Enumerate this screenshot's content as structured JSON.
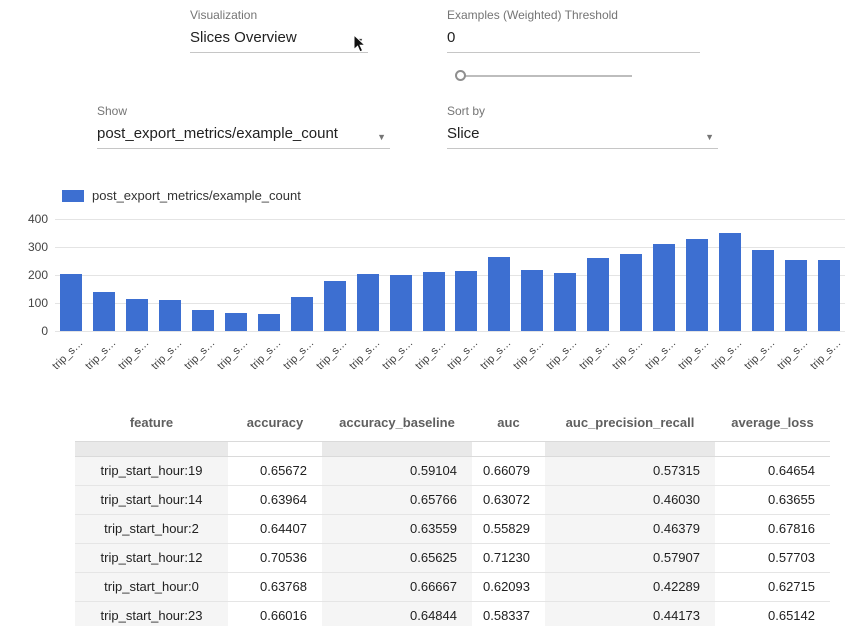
{
  "controls": {
    "visualization": {
      "label": "Visualization",
      "value": "Slices Overview"
    },
    "threshold": {
      "label": "Examples (Weighted) Threshold",
      "value": "0"
    },
    "show": {
      "label": "Show",
      "value": "post_export_metrics/example_count"
    },
    "sort_by": {
      "label": "Sort by",
      "value": "Slice"
    }
  },
  "chart_data": {
    "type": "bar",
    "legend": "post_export_metrics/example_count",
    "bar_color": "#3d6fd1",
    "ylim": [
      0,
      400
    ],
    "y_ticks": [
      0,
      100,
      200,
      300,
      400
    ],
    "x_tick_label": "trip_s…",
    "values": [
      205,
      140,
      113,
      110,
      75,
      65,
      62,
      120,
      178,
      205,
      200,
      210,
      213,
      265,
      218,
      208,
      260,
      275,
      310,
      330,
      350,
      290,
      253,
      255
    ]
  },
  "table": {
    "columns": [
      "feature",
      "accuracy",
      "accuracy_baseline",
      "auc",
      "auc_precision_recall",
      "average_loss"
    ],
    "rows": [
      [
        "trip_start_hour:19",
        "0.65672",
        "0.59104",
        "0.66079",
        "0.57315",
        "0.64654"
      ],
      [
        "trip_start_hour:14",
        "0.63964",
        "0.65766",
        "0.63072",
        "0.46030",
        "0.63655"
      ],
      [
        "trip_start_hour:2",
        "0.64407",
        "0.63559",
        "0.55829",
        "0.46379",
        "0.67816"
      ],
      [
        "trip_start_hour:12",
        "0.70536",
        "0.65625",
        "0.71230",
        "0.57907",
        "0.57703"
      ],
      [
        "trip_start_hour:0",
        "0.63768",
        "0.66667",
        "0.62093",
        "0.42289",
        "0.62715"
      ],
      [
        "trip_start_hour:23",
        "0.66016",
        "0.64844",
        "0.58337",
        "0.44173",
        "0.65142"
      ]
    ]
  }
}
